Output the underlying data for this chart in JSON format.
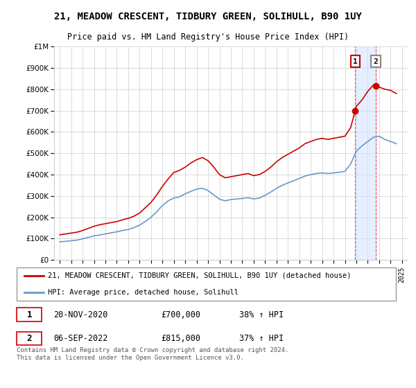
{
  "title": "21, MEADOW CRESCENT, TIDBURY GREEN, SOLIHULL, B90 1UY",
  "subtitle": "Price paid vs. HM Land Registry's House Price Index (HPI)",
  "ylabel_ticks": [
    "£0",
    "£100K",
    "£200K",
    "£300K",
    "£400K",
    "£500K",
    "£600K",
    "£700K",
    "£800K",
    "£900K",
    "£1M"
  ],
  "ytick_values": [
    0,
    100000,
    200000,
    300000,
    400000,
    500000,
    600000,
    700000,
    800000,
    900000,
    1000000
  ],
  "xlim_start": 1994.5,
  "xlim_end": 2025.5,
  "ylim_min": 0,
  "ylim_max": 1000000,
  "red_line_color": "#cc0000",
  "blue_line_color": "#6699cc",
  "marker1_date": 2020.9,
  "marker1_value": 700000,
  "marker2_date": 2022.7,
  "marker2_value": 815000,
  "marker1_label": "1",
  "marker2_label": "2",
  "legend_red_label": "21, MEADOW CRESCENT, TIDBURY GREEN, SOLIHULL, B90 1UY (detached house)",
  "legend_blue_label": "HPI: Average price, detached house, Solihull",
  "footnote1_label": "1",
  "footnote1_date": "20-NOV-2020",
  "footnote1_price": "£700,000",
  "footnote1_pct": "38% ↑ HPI",
  "footnote2_label": "2",
  "footnote2_date": "06-SEP-2022",
  "footnote2_price": "£815,000",
  "footnote2_pct": "37% ↑ HPI",
  "copyright_text": "Contains HM Land Registry data © Crown copyright and database right 2024.\nThis data is licensed under the Open Government Licence v3.0.",
  "shaded_region_start": 2020.9,
  "shaded_region_end": 2022.7,
  "red_x": [
    1995.0,
    1995.5,
    1996.0,
    1996.5,
    1997.0,
    1997.5,
    1998.0,
    1998.5,
    1999.0,
    1999.5,
    2000.0,
    2000.5,
    2001.0,
    2001.5,
    2002.0,
    2002.5,
    2003.0,
    2003.5,
    2004.0,
    2004.5,
    2005.0,
    2005.5,
    2006.0,
    2006.5,
    2007.0,
    2007.5,
    2008.0,
    2008.5,
    2009.0,
    2009.5,
    2010.0,
    2010.5,
    2011.0,
    2011.5,
    2012.0,
    2012.5,
    2013.0,
    2013.5,
    2014.0,
    2014.5,
    2015.0,
    2015.5,
    2016.0,
    2016.5,
    2017.0,
    2017.5,
    2018.0,
    2018.5,
    2019.0,
    2019.5,
    2020.0,
    2020.5,
    2020.9,
    2021.0,
    2021.5,
    2022.0,
    2022.5,
    2022.7,
    2023.0,
    2023.5,
    2024.0,
    2024.5
  ],
  "red_y": [
    118000,
    122000,
    126000,
    130000,
    138000,
    148000,
    158000,
    165000,
    170000,
    175000,
    180000,
    188000,
    195000,
    205000,
    220000,
    245000,
    270000,
    305000,
    345000,
    380000,
    410000,
    420000,
    435000,
    455000,
    470000,
    480000,
    465000,
    435000,
    400000,
    385000,
    390000,
    395000,
    400000,
    405000,
    395000,
    400000,
    415000,
    435000,
    460000,
    480000,
    495000,
    510000,
    525000,
    545000,
    555000,
    565000,
    570000,
    565000,
    570000,
    575000,
    580000,
    620000,
    700000,
    720000,
    750000,
    790000,
    820000,
    815000,
    810000,
    800000,
    795000,
    780000
  ],
  "blue_x": [
    1995.0,
    1995.5,
    1996.0,
    1996.5,
    1997.0,
    1997.5,
    1998.0,
    1998.5,
    1999.0,
    1999.5,
    2000.0,
    2000.5,
    2001.0,
    2001.5,
    2002.0,
    2002.5,
    2003.0,
    2003.5,
    2004.0,
    2004.5,
    2005.0,
    2005.5,
    2006.0,
    2006.5,
    2007.0,
    2007.5,
    2008.0,
    2008.5,
    2009.0,
    2009.5,
    2010.0,
    2010.5,
    2011.0,
    2011.5,
    2012.0,
    2012.5,
    2013.0,
    2013.5,
    2014.0,
    2014.5,
    2015.0,
    2015.5,
    2016.0,
    2016.5,
    2017.0,
    2017.5,
    2018.0,
    2018.5,
    2019.0,
    2019.5,
    2020.0,
    2020.5,
    2021.0,
    2021.5,
    2022.0,
    2022.5,
    2023.0,
    2023.5,
    2024.0,
    2024.5
  ],
  "blue_y": [
    85000,
    87000,
    90000,
    93000,
    99000,
    106000,
    113000,
    117000,
    122000,
    127000,
    132000,
    138000,
    143000,
    151000,
    163000,
    181000,
    200000,
    226000,
    255000,
    277000,
    290000,
    296000,
    310000,
    322000,
    332000,
    336000,
    325000,
    305000,
    285000,
    277000,
    283000,
    286000,
    288000,
    292000,
    286000,
    290000,
    303000,
    318000,
    336000,
    350000,
    361000,
    371000,
    382000,
    393000,
    400000,
    405000,
    408000,
    405000,
    408000,
    411000,
    415000,
    450000,
    510000,
    535000,
    555000,
    575000,
    580000,
    565000,
    555000,
    545000
  ]
}
